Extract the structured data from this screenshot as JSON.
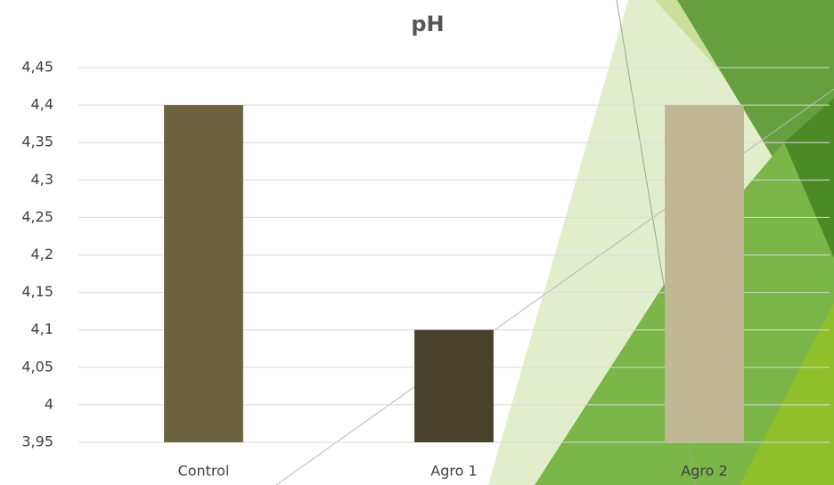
{
  "chart_data": {
    "type": "bar",
    "title": "pH",
    "categories": [
      "Control",
      "Agro 1",
      "Agro 2"
    ],
    "values": [
      4.4,
      4.1,
      4.4
    ],
    "colors": [
      "#6b6240",
      "#48432a",
      "#c0b794"
    ],
    "ylim": [
      3.95,
      4.45
    ],
    "yticks": [
      {
        "value": 3.95,
        "label": "3,95"
      },
      4,
      {
        "value": 4.05,
        "label": "4,05"
      },
      {
        "value": 4.1,
        "label": "4,1"
      },
      {
        "value": 4.15,
        "label": "4,15"
      },
      {
        "value": 4.2,
        "label": "4,2"
      },
      {
        "value": 4.25,
        "label": "4,25"
      },
      {
        "value": 4.3,
        "label": "4,3"
      },
      {
        "value": 4.35,
        "label": "4,35"
      },
      {
        "value": 4.4,
        "label": "4,4"
      },
      {
        "value": 4.45,
        "label": "4,45"
      }
    ],
    "grid": true
  }
}
